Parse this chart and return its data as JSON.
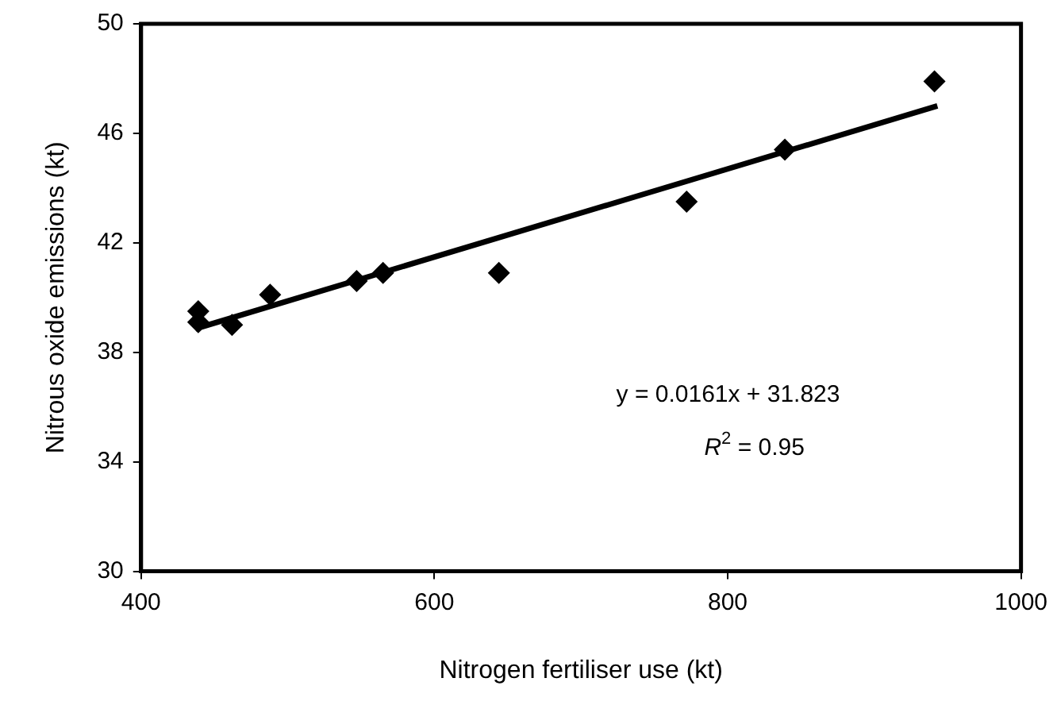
{
  "chart_data": {
    "type": "scatter",
    "xlabel": "Nitrogen fertiliser use (kt)",
    "ylabel": "Nitrous oxide emissions (kt)",
    "xlim": [
      400,
      1000
    ],
    "xticks": [
      400,
      600,
      800,
      1000
    ],
    "ylim": [
      30,
      50
    ],
    "yticks": [
      30,
      34,
      38,
      42,
      46,
      50
    ],
    "grid": false,
    "legend": false,
    "marker": "diamond",
    "series": [
      {
        "color": "#000000",
        "x": [
          439,
          439,
          462,
          488,
          547,
          565,
          644,
          772,
          839,
          941
        ],
        "values": [
          39.5,
          39.1,
          39.0,
          40.1,
          40.6,
          40.9,
          40.9,
          43.5,
          45.4,
          47.9
        ]
      },
      {
        "type": "line",
        "color": "#000000",
        "marker": "none",
        "line_style": "solid",
        "x": [
          437,
          943
        ],
        "values": [
          38.86,
          47.0
        ]
      }
    ],
    "annotations": [
      "y = 0.0161x + 31.823",
      "R$^{2}$ = 0.95"
    ]
  }
}
